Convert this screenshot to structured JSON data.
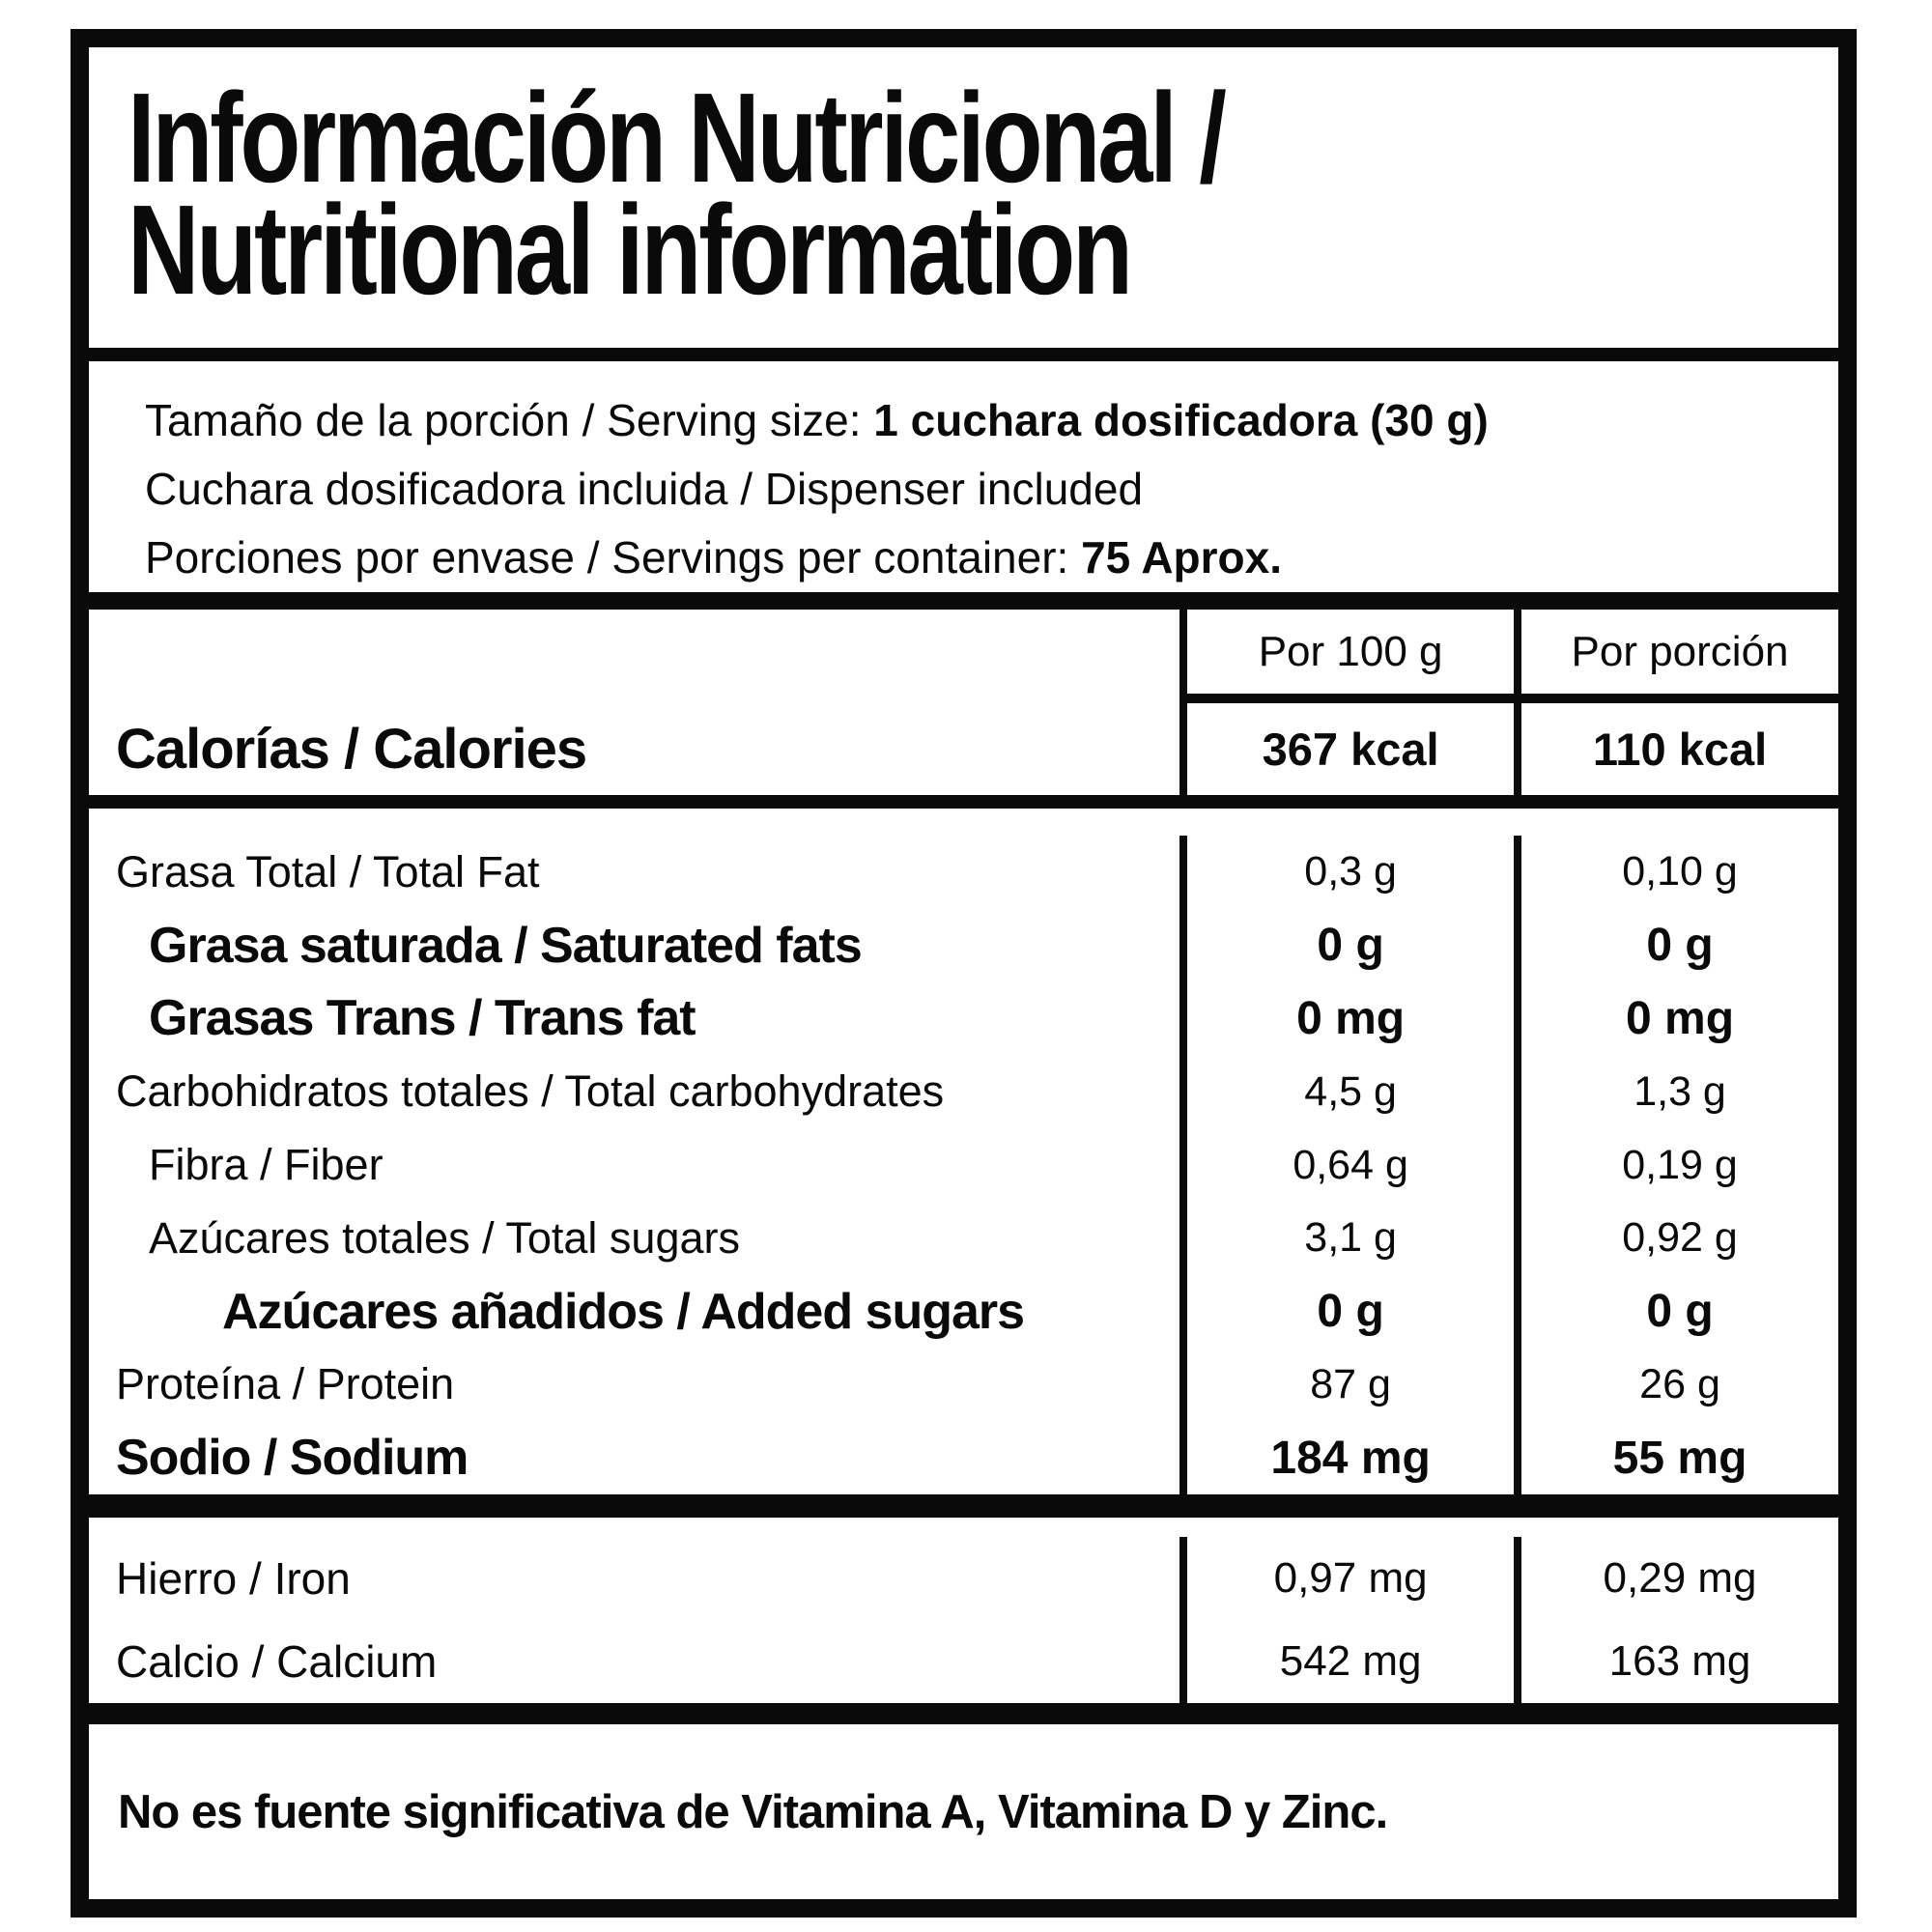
{
  "title": {
    "line1": "Información Nutricional /",
    "line2": "Nutritional information"
  },
  "serving": {
    "line1_label": "Tamaño de la porción / Serving size: ",
    "line1_value": "1 cuchara dosificadora (30 g)",
    "line2": "Cuchara dosificadora incluida / Dispenser included",
    "line3_label": "Porciones por envase / Servings per container: ",
    "line3_value": "75 Aprox."
  },
  "table": {
    "col_headers": {
      "per_100g": "Por 100 g",
      "per_serving": "Por porción"
    },
    "calories": {
      "label": "Calorías / Calories",
      "per_100g": "367 kcal",
      "per_serving": "110 kcal"
    },
    "rows": [
      {
        "label": "Grasa Total / Total Fat",
        "per_100g": "0,3 g",
        "per_serving": "0,10 g",
        "bold": false,
        "indent": 0
      },
      {
        "label": "Grasa saturada / Saturated fats",
        "per_100g": "0 g",
        "per_serving": "0 g",
        "bold": true,
        "indent": 1
      },
      {
        "label": "Grasas Trans / Trans fat",
        "per_100g": "0 mg",
        "per_serving": "0 mg",
        "bold": true,
        "indent": 1
      },
      {
        "label": "Carbohidratos totales / Total carbohydrates",
        "per_100g": "4,5 g",
        "per_serving": "1,3 g",
        "bold": false,
        "indent": 0
      },
      {
        "label": "Fibra / Fiber",
        "per_100g": "0,64 g",
        "per_serving": "0,19 g",
        "bold": false,
        "indent": 1
      },
      {
        "label": "Azúcares totales / Total sugars",
        "per_100g": "3,1 g",
        "per_serving": "0,92 g",
        "bold": false,
        "indent": 1
      },
      {
        "label": "Azúcares añadidos / Added sugars",
        "per_100g": "0 g",
        "per_serving": "0 g",
        "bold": true,
        "indent": 2
      },
      {
        "label": "Proteína / Protein",
        "per_100g": "87 g",
        "per_serving": "26 g",
        "bold": false,
        "indent": 0
      },
      {
        "label": "Sodio / Sodium",
        "per_100g": "184 mg",
        "per_serving": "55 mg",
        "bold": true,
        "indent": 0
      }
    ],
    "minerals": [
      {
        "label": "Hierro / Iron",
        "per_100g": "0,97 mg",
        "per_serving": "0,29 mg"
      },
      {
        "label": "Calcio / Calcium",
        "per_100g": "542 mg",
        "per_serving": "163 mg"
      }
    ]
  },
  "footer": {
    "note": "No es fuente significativa de Vitamina A, Vitamina D y Zinc."
  },
  "colors": {
    "ink": "#0a0a0a",
    "paper": "#ffffff"
  }
}
